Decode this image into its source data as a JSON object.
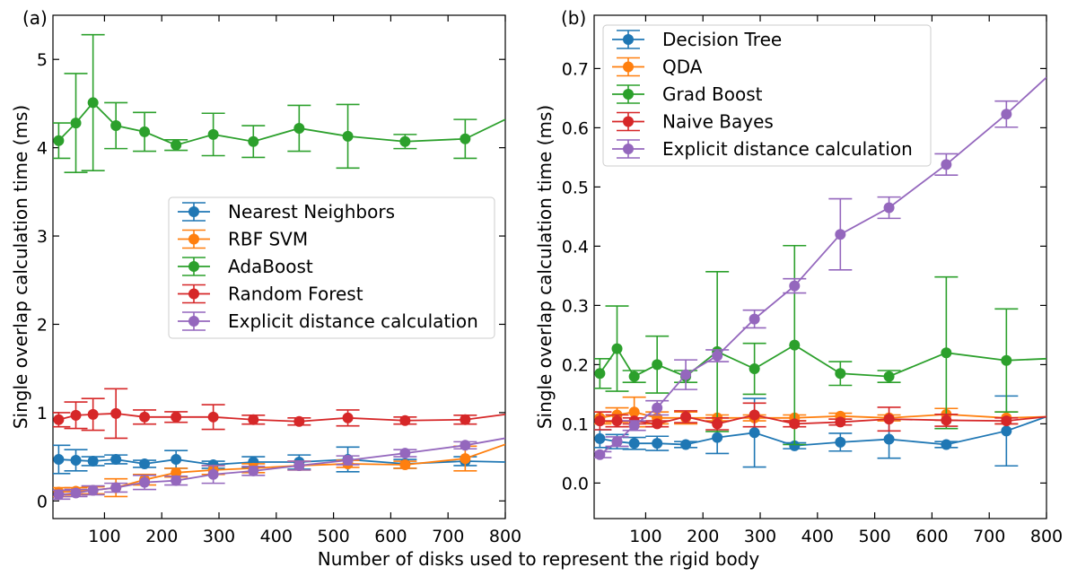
{
  "figure": {
    "xlabel": "Number of disks used to represent the rigid body"
  },
  "chart_data": [
    {
      "type": "line",
      "panel_label": "(a)",
      "xlabel": "",
      "ylabel": "Single overlap calculation time (ms)",
      "xlim": [
        10,
        800
      ],
      "ylim": [
        -0.2,
        5.5
      ],
      "xticks": [
        100,
        200,
        300,
        400,
        500,
        600,
        700,
        800
      ],
      "yticks": [
        0,
        1,
        2,
        3,
        4,
        5
      ],
      "grid": false,
      "legend_position": "center-right",
      "error_bars": true,
      "series": [
        {
          "name": "Nearest Neighbors",
          "color": "#1f77b4",
          "x": [
            20,
            50,
            80,
            120,
            170,
            225,
            290,
            360,
            440,
            525,
            625,
            730,
            800
          ],
          "y": [
            0.47,
            0.46,
            0.45,
            0.47,
            0.42,
            0.47,
            0.41,
            0.44,
            0.44,
            0.47,
            0.42,
            0.45,
            0.44
          ],
          "err": [
            0.16,
            0.12,
            0.05,
            0.05,
            0.04,
            0.1,
            0.04,
            0.06,
            0.08,
            0.14,
            0.05,
            0.05,
            null
          ]
        },
        {
          "name": "RBF SVM",
          "color": "#ff7f0e",
          "x": [
            20,
            50,
            80,
            120,
            170,
            225,
            290,
            360,
            440,
            525,
            625,
            730,
            800
          ],
          "y": [
            0.1,
            0.11,
            0.12,
            0.15,
            0.24,
            0.32,
            0.35,
            0.37,
            0.4,
            0.42,
            0.41,
            0.48,
            0.64
          ],
          "err": [
            0.05,
            0.04,
            0.04,
            0.1,
            0.06,
            0.05,
            0.05,
            0.05,
            0.05,
            0.04,
            0.04,
            0.14,
            null
          ]
        },
        {
          "name": "AdaBoost",
          "color": "#2ca02c",
          "x": [
            20,
            50,
            80,
            120,
            170,
            225,
            290,
            360,
            440,
            525,
            625,
            730,
            800
          ],
          "y": [
            4.08,
            4.28,
            4.51,
            4.25,
            4.18,
            4.03,
            4.15,
            4.07,
            4.22,
            4.13,
            4.07,
            4.1,
            4.32
          ],
          "err": [
            0.2,
            0.56,
            0.77,
            0.26,
            0.22,
            0.06,
            0.24,
            0.18,
            0.26,
            0.36,
            0.08,
            0.22,
            null
          ]
        },
        {
          "name": "Random Forest",
          "color": "#d62728",
          "x": [
            20,
            50,
            80,
            120,
            170,
            225,
            290,
            360,
            440,
            525,
            625,
            730,
            800
          ],
          "y": [
            0.92,
            0.97,
            0.98,
            0.99,
            0.95,
            0.95,
            0.95,
            0.92,
            0.9,
            0.94,
            0.91,
            0.92,
            0.98
          ],
          "err": [
            0.08,
            0.15,
            0.18,
            0.28,
            0.08,
            0.06,
            0.14,
            0.05,
            0.04,
            0.09,
            0.04,
            0.05,
            null
          ]
        },
        {
          "name": "Explicit distance calculation",
          "color": "#9467bd",
          "x": [
            20,
            50,
            80,
            120,
            170,
            225,
            290,
            360,
            440,
            525,
            625,
            730,
            800
          ],
          "y": [
            0.07,
            0.09,
            0.12,
            0.15,
            0.21,
            0.23,
            0.3,
            0.34,
            0.4,
            0.46,
            0.54,
            0.63,
            0.71
          ],
          "err": [
            0.05,
            0.04,
            0.05,
            0.05,
            0.08,
            0.05,
            0.1,
            0.05,
            0.05,
            0.05,
            0.04,
            0.04,
            null
          ]
        }
      ]
    },
    {
      "type": "line",
      "panel_label": "(b)",
      "xlabel": "",
      "ylabel": "Single overlap calculation time (ms)",
      "xlim": [
        10,
        800
      ],
      "ylim": [
        -0.06,
        0.79
      ],
      "xticks": [
        100,
        200,
        300,
        400,
        500,
        600,
        700,
        800
      ],
      "yticks": [
        0.0,
        0.1,
        0.2,
        0.3,
        0.4,
        0.5,
        0.6,
        0.7
      ],
      "ytick_labels": [
        "0.0",
        "0.1",
        "0.2",
        "0.3",
        "0.4",
        "0.5",
        "0.6",
        "0.7"
      ],
      "grid": false,
      "legend_position": "top-left",
      "error_bars": true,
      "series": [
        {
          "name": "Decision Tree",
          "color": "#1f77b4",
          "x": [
            20,
            50,
            80,
            120,
            170,
            225,
            290,
            360,
            440,
            525,
            625,
            730,
            800
          ],
          "y": [
            0.075,
            0.07,
            0.067,
            0.067,
            0.065,
            0.077,
            0.085,
            0.063,
            0.069,
            0.074,
            0.065,
            0.088,
            0.112
          ],
          "err": [
            0.015,
            0.012,
            0.01,
            0.012,
            0.005,
            0.027,
            0.058,
            0.005,
            0.015,
            0.032,
            0.005,
            0.059,
            null
          ]
        },
        {
          "name": "QDA",
          "color": "#ff7f0e",
          "x": [
            20,
            50,
            80,
            120,
            170,
            225,
            290,
            360,
            440,
            525,
            625,
            730,
            800
          ],
          "y": [
            0.11,
            0.115,
            0.12,
            0.11,
            0.11,
            0.11,
            0.11,
            0.11,
            0.113,
            0.11,
            0.116,
            0.11,
            0.112
          ],
          "err": [
            0.01,
            0.012,
            0.025,
            0.01,
            0.01,
            0.005,
            0.005,
            0.005,
            0.005,
            0.005,
            0.01,
            0.01,
            null
          ]
        },
        {
          "name": "Grad Boost",
          "color": "#2ca02c",
          "x": [
            20,
            50,
            80,
            120,
            170,
            225,
            290,
            360,
            440,
            525,
            625,
            730,
            800
          ],
          "y": [
            0.185,
            0.227,
            0.18,
            0.2,
            0.18,
            0.222,
            0.193,
            0.233,
            0.185,
            0.18,
            0.22,
            0.207,
            0.21
          ],
          "err": [
            0.025,
            0.072,
            0.01,
            0.048,
            0.01,
            0.135,
            0.043,
            0.168,
            0.02,
            0.01,
            0.128,
            0.087,
            null
          ]
        },
        {
          "name": "Naive Bayes",
          "color": "#d62728",
          "x": [
            20,
            50,
            80,
            120,
            170,
            225,
            290,
            360,
            440,
            525,
            625,
            730,
            800
          ],
          "y": [
            0.105,
            0.105,
            0.105,
            0.1,
            0.112,
            0.1,
            0.115,
            0.1,
            0.103,
            0.108,
            0.106,
            0.105,
            0.112
          ],
          "err": [
            0.015,
            0.01,
            0.005,
            0.005,
            0.01,
            0.01,
            0.02,
            0.005,
            0.005,
            0.02,
            0.01,
            0.005,
            null
          ]
        },
        {
          "name": "Explicit distance calculation",
          "color": "#9467bd",
          "x": [
            20,
            50,
            80,
            120,
            170,
            225,
            290,
            360,
            440,
            525,
            625,
            730,
            800
          ],
          "y": [
            0.048,
            0.07,
            0.097,
            0.127,
            0.183,
            0.215,
            0.277,
            0.333,
            0.42,
            0.465,
            0.538,
            0.623,
            0.685
          ],
          "err": [
            0.005,
            0.008,
            0.008,
            0.012,
            0.025,
            0.01,
            0.015,
            0.012,
            0.06,
            0.018,
            0.018,
            0.022,
            null
          ]
        }
      ]
    }
  ]
}
